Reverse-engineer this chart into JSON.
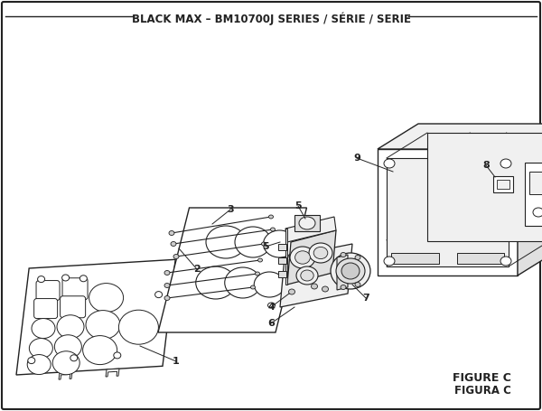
{
  "title": "BLACK MAX – BM10700J SERIES / SÉRIE / SERIE",
  "figure_label": "FIGURE C",
  "figura_label": "FIGURA C",
  "bg_color": "#ffffff",
  "line_color": "#222222",
  "lw_main": 1.0,
  "lw_thin": 0.6,
  "title_fontsize": 8.5,
  "label_fontsize": 8,
  "figure_label_fontsize": 9
}
